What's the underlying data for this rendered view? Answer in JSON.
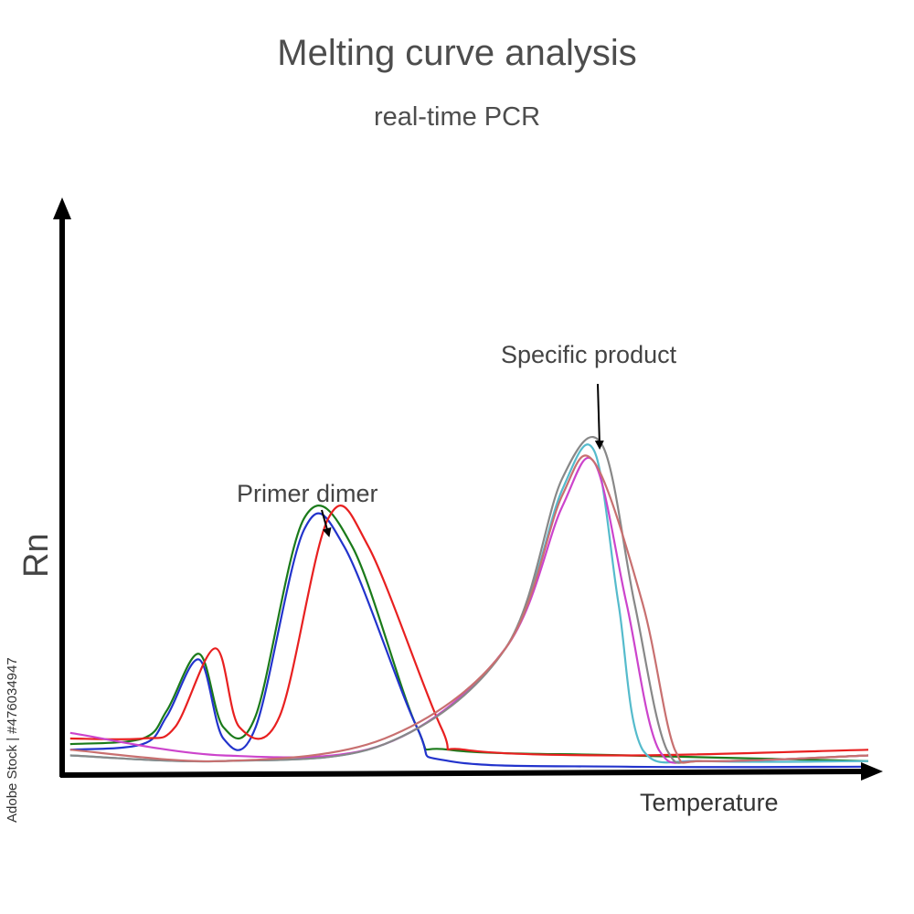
{
  "chart_data": {
    "type": "line",
    "title": "Melting curve analysis",
    "subtitle": "real-time PCR",
    "xlabel": "Temperature",
    "ylabel": "Rn",
    "xlim": [
      0,
      100
    ],
    "ylim": [
      0,
      100
    ],
    "grid": false,
    "annotations": [
      {
        "text": "Primer dimer",
        "x": 34,
        "y": 34
      },
      {
        "text": "Specific product",
        "x": 67,
        "y": 61
      }
    ],
    "series": [
      {
        "color": "#1a7a1a",
        "values": [
          [
            1,
            5
          ],
          [
            10,
            6
          ],
          [
            13,
            11
          ],
          [
            17,
            21
          ],
          [
            20,
            8
          ],
          [
            24,
            10
          ],
          [
            30,
            45
          ],
          [
            36,
            40
          ],
          [
            44,
            8
          ],
          [
            48,
            4
          ],
          [
            70,
            3
          ],
          [
            100,
            2
          ]
        ]
      },
      {
        "color": "#2233cc",
        "values": [
          [
            1,
            4
          ],
          [
            10,
            5
          ],
          [
            13,
            10
          ],
          [
            17,
            20
          ],
          [
            20,
            6
          ],
          [
            24,
            8
          ],
          [
            30,
            43
          ],
          [
            35,
            40
          ],
          [
            44,
            8
          ],
          [
            48,
            2
          ],
          [
            70,
            1
          ],
          [
            100,
            1
          ]
        ]
      },
      {
        "color": "#e82020",
        "values": [
          [
            1,
            6
          ],
          [
            10,
            6
          ],
          [
            14,
            8
          ],
          [
            19,
            22
          ],
          [
            22,
            8
          ],
          [
            27,
            10
          ],
          [
            33,
            45
          ],
          [
            38,
            40
          ],
          [
            47,
            8
          ],
          [
            50,
            4
          ],
          [
            70,
            3
          ],
          [
            100,
            4
          ]
        ]
      },
      {
        "color": "#55bbcc",
        "values": [
          [
            1,
            3
          ],
          [
            20,
            2
          ],
          [
            40,
            5
          ],
          [
            55,
            22
          ],
          [
            62,
            50
          ],
          [
            66,
            57
          ],
          [
            69,
            30
          ],
          [
            72,
            4
          ],
          [
            80,
            2
          ],
          [
            100,
            2
          ]
        ]
      },
      {
        "color": "#cc44cc",
        "values": [
          [
            1,
            7
          ],
          [
            20,
            3
          ],
          [
            40,
            5
          ],
          [
            55,
            22
          ],
          [
            62,
            47
          ],
          [
            66,
            55
          ],
          [
            70,
            30
          ],
          [
            74,
            4
          ],
          [
            80,
            2
          ],
          [
            100,
            3
          ]
        ]
      },
      {
        "color": "#888888",
        "values": [
          [
            1,
            3
          ],
          [
            20,
            2
          ],
          [
            40,
            5
          ],
          [
            55,
            22
          ],
          [
            62,
            52
          ],
          [
            67,
            58
          ],
          [
            71,
            30
          ],
          [
            75,
            4
          ],
          [
            80,
            2
          ],
          [
            100,
            3
          ]
        ]
      },
      {
        "color": "#c87070",
        "values": [
          [
            1,
            4
          ],
          [
            20,
            2
          ],
          [
            40,
            6
          ],
          [
            55,
            22
          ],
          [
            62,
            49
          ],
          [
            66,
            55
          ],
          [
            72,
            30
          ],
          [
            76,
            4
          ],
          [
            80,
            2
          ],
          [
            100,
            3
          ]
        ]
      }
    ]
  },
  "side_label": "Adobe Stock | #476034947"
}
